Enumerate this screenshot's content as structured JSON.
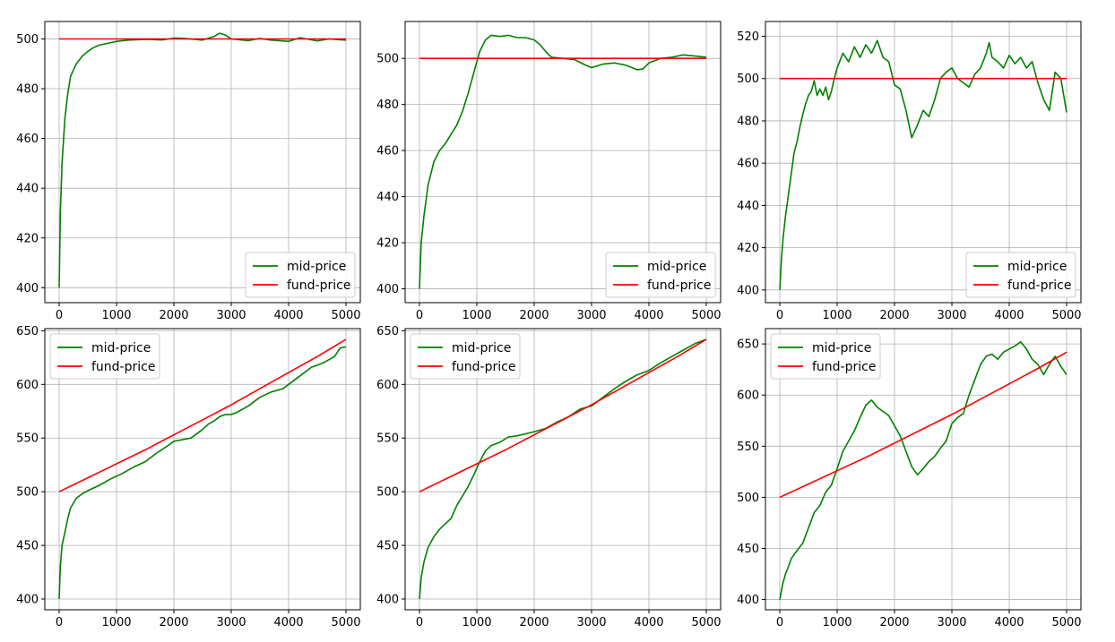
{
  "figure": {
    "layout": "2x3 grid of line charts",
    "colors": {
      "mid": "#008000",
      "fund": "#ff0000",
      "grid": "#b0b0b0",
      "axes": "#000000"
    }
  },
  "chart_data": [
    {
      "type": "line",
      "xlim": [
        -250,
        5250
      ],
      "ylim": [
        394,
        507
      ],
      "xticks": [
        0,
        1000,
        2000,
        3000,
        4000,
        5000
      ],
      "yticks": [
        400,
        420,
        440,
        460,
        480,
        500
      ],
      "grid": true,
      "legend_position": "lower-right",
      "series": [
        {
          "name": "mid-price",
          "color": "#008000",
          "x": [
            0,
            20,
            50,
            100,
            150,
            200,
            300,
            400,
            500,
            600,
            700,
            800,
            1000,
            1200,
            1500,
            1800,
            2000,
            2200,
            2500,
            2700,
            2800,
            2900,
            3000,
            3300,
            3500,
            3700,
            4000,
            4200,
            4500,
            4700,
            5000
          ],
          "y": [
            400,
            430,
            450,
            468,
            478,
            485,
            490,
            493,
            495,
            496.5,
            497.5,
            498,
            499,
            499.5,
            499.8,
            499.6,
            500.3,
            500.2,
            499.5,
            501,
            502.3,
            501.5,
            500,
            499.3,
            500.2,
            499.5,
            499,
            500.5,
            499.2,
            500,
            499.5
          ]
        },
        {
          "name": "fund-price",
          "color": "#ff0000",
          "x": [
            0,
            5000
          ],
          "y": [
            500,
            500
          ]
        }
      ]
    },
    {
      "type": "line",
      "xlim": [
        -250,
        5250
      ],
      "ylim": [
        394,
        516
      ],
      "xticks": [
        0,
        1000,
        2000,
        3000,
        4000,
        5000
      ],
      "yticks": [
        400,
        420,
        440,
        460,
        480,
        500
      ],
      "grid": true,
      "legend_position": "lower-right",
      "series": [
        {
          "name": "mid-price",
          "color": "#008000",
          "x": [
            0,
            30,
            80,
            150,
            250,
            350,
            450,
            550,
            650,
            750,
            850,
            950,
            1050,
            1150,
            1250,
            1400,
            1550,
            1700,
            1850,
            2000,
            2100,
            2200,
            2300,
            2500,
            2700,
            2900,
            3000,
            3200,
            3400,
            3600,
            3800,
            3900,
            4000,
            4200,
            4400,
            4600,
            4800,
            5000
          ],
          "y": [
            400,
            420,
            432,
            445,
            455,
            460,
            463,
            467,
            471,
            477,
            485,
            494,
            503,
            508,
            510,
            509.5,
            510,
            509,
            509,
            508,
            506,
            503,
            500.5,
            500,
            499.5,
            497,
            496,
            497.5,
            498,
            497,
            495,
            495.5,
            498,
            500,
            500.5,
            501.5,
            501,
            500.5
          ]
        },
        {
          "name": "fund-price",
          "color": "#ff0000",
          "x": [
            0,
            5000
          ],
          "y": [
            500,
            500
          ]
        }
      ]
    },
    {
      "type": "line",
      "xlim": [
        -250,
        5250
      ],
      "ylim": [
        394,
        527
      ],
      "xticks": [
        0,
        1000,
        2000,
        3000,
        4000,
        5000
      ],
      "yticks": [
        400,
        420,
        440,
        460,
        480,
        500,
        520
      ],
      "grid": true,
      "legend_position": "lower-right",
      "series": [
        {
          "name": "mid-price",
          "color": "#008000",
          "x": [
            0,
            30,
            60,
            100,
            150,
            200,
            250,
            300,
            350,
            400,
            450,
            500,
            550,
            600,
            650,
            700,
            750,
            800,
            850,
            900,
            950,
            1000,
            1100,
            1200,
            1300,
            1400,
            1500,
            1600,
            1700,
            1800,
            1900,
            2000,
            2100,
            2200,
            2300,
            2400,
            2500,
            2600,
            2700,
            2800,
            2900,
            3000,
            3100,
            3200,
            3300,
            3400,
            3500,
            3600,
            3650,
            3700,
            3800,
            3900,
            4000,
            4100,
            4200,
            4300,
            4400,
            4500,
            4600,
            4700,
            4800,
            4900,
            5000
          ],
          "y": [
            400,
            415,
            425,
            435,
            445,
            455,
            465,
            470,
            477,
            483,
            488,
            492,
            494,
            499,
            492,
            495,
            492,
            496,
            490,
            494,
            500,
            505,
            512,
            508,
            515,
            510,
            516,
            512,
            518,
            510,
            508,
            497,
            495,
            485,
            472,
            478,
            485,
            482,
            490,
            500,
            503,
            505,
            500,
            498,
            496,
            502,
            505,
            512,
            517,
            510,
            508,
            505,
            511,
            507,
            510,
            505,
            508,
            498,
            490,
            485,
            503,
            500,
            484
          ]
        },
        {
          "name": "fund-price",
          "color": "#ff0000",
          "x": [
            0,
            5000
          ],
          "y": [
            500,
            500
          ]
        }
      ]
    },
    {
      "type": "line",
      "xlim": [
        -250,
        5250
      ],
      "ylim": [
        390,
        652
      ],
      "xticks": [
        0,
        1000,
        2000,
        3000,
        4000,
        5000
      ],
      "yticks": [
        400,
        450,
        500,
        550,
        600,
        650
      ],
      "grid": true,
      "legend_position": "upper-left",
      "series": [
        {
          "name": "mid-price",
          "color": "#008000",
          "x": [
            0,
            20,
            50,
            100,
            150,
            200,
            300,
            400,
            500,
            700,
            900,
            1100,
            1300,
            1500,
            1700,
            1900,
            2000,
            2100,
            2300,
            2500,
            2600,
            2700,
            2800,
            2900,
            3000,
            3100,
            3300,
            3500,
            3700,
            3900,
            4000,
            4200,
            4400,
            4600,
            4800,
            4900,
            5000
          ],
          "y": [
            400,
            430,
            450,
            462,
            475,
            485,
            494,
            498,
            501,
            506,
            512,
            517,
            523,
            528,
            536,
            543,
            547,
            548,
            550,
            558,
            563,
            566,
            570,
            572,
            572,
            574,
            580,
            588,
            593,
            596,
            600,
            608,
            616,
            620,
            626,
            634,
            635
          ]
        },
        {
          "name": "fund-price",
          "color": "#ff0000",
          "x": [
            0,
            500,
            1000,
            1500,
            2000,
            2500,
            3000,
            3500,
            4000,
            4500,
            5000
          ],
          "y": [
            500,
            513,
            526,
            539,
            553,
            567,
            581,
            596,
            611,
            626,
            642
          ]
        }
      ]
    },
    {
      "type": "line",
      "xlim": [
        -250,
        5250
      ],
      "ylim": [
        390,
        652
      ],
      "xticks": [
        0,
        1000,
        2000,
        3000,
        4000,
        5000
      ],
      "yticks": [
        400,
        450,
        500,
        550,
        600,
        650
      ],
      "grid": true,
      "legend_position": "upper-left",
      "series": [
        {
          "name": "mid-price",
          "color": "#008000",
          "x": [
            0,
            30,
            80,
            150,
            250,
            350,
            450,
            550,
            650,
            750,
            850,
            950,
            1050,
            1150,
            1250,
            1400,
            1550,
            1700,
            1850,
            2000,
            2200,
            2400,
            2600,
            2800,
            3000,
            3200,
            3400,
            3600,
            3800,
            4000,
            4200,
            4400,
            4600,
            4800,
            5000
          ],
          "y": [
            400,
            420,
            435,
            448,
            458,
            465,
            470,
            475,
            487,
            496,
            505,
            516,
            528,
            538,
            543,
            546,
            551,
            552,
            554,
            556,
            559,
            565,
            570,
            577,
            580,
            588,
            596,
            603,
            609,
            613,
            620,
            626,
            632,
            638,
            642
          ]
        },
        {
          "name": "fund-price",
          "color": "#ff0000",
          "x": [
            0,
            500,
            1000,
            1500,
            2000,
            2500,
            3000,
            3500,
            4000,
            4500,
            5000
          ],
          "y": [
            500,
            513,
            526,
            539,
            553,
            567,
            581,
            596,
            611,
            626,
            642
          ]
        }
      ]
    },
    {
      "type": "line",
      "xlim": [
        -250,
        5250
      ],
      "ylim": [
        390,
        665
      ],
      "xticks": [
        0,
        1000,
        2000,
        3000,
        4000,
        5000
      ],
      "yticks": [
        400,
        450,
        500,
        550,
        600,
        650
      ],
      "grid": true,
      "legend_position": "upper-left",
      "series": [
        {
          "name": "mid-price",
          "color": "#008000",
          "x": [
            0,
            50,
            100,
            150,
            200,
            300,
            400,
            500,
            600,
            700,
            800,
            900,
            1000,
            1100,
            1200,
            1300,
            1400,
            1500,
            1600,
            1700,
            1800,
            1900,
            2000,
            2100,
            2200,
            2300,
            2400,
            2500,
            2600,
            2700,
            2800,
            2900,
            3000,
            3100,
            3200,
            3300,
            3400,
            3500,
            3600,
            3700,
            3800,
            3900,
            4000,
            4100,
            4200,
            4300,
            4400,
            4500,
            4600,
            4700,
            4800,
            4900,
            5000
          ],
          "y": [
            400,
            415,
            425,
            432,
            440,
            448,
            455,
            470,
            485,
            492,
            505,
            512,
            528,
            545,
            555,
            565,
            578,
            590,
            595,
            588,
            584,
            580,
            570,
            560,
            545,
            530,
            522,
            528,
            535,
            540,
            548,
            555,
            572,
            578,
            582,
            600,
            615,
            630,
            638,
            640,
            635,
            642,
            645,
            648,
            652,
            645,
            635,
            630,
            620,
            630,
            638,
            628,
            620
          ]
        },
        {
          "name": "fund-price",
          "color": "#ff0000",
          "x": [
            0,
            500,
            1000,
            1500,
            2000,
            2500,
            3000,
            3500,
            4000,
            4500,
            5000
          ],
          "y": [
            500,
            513,
            526,
            539,
            553,
            567,
            581,
            596,
            611,
            626,
            642
          ]
        }
      ]
    }
  ]
}
